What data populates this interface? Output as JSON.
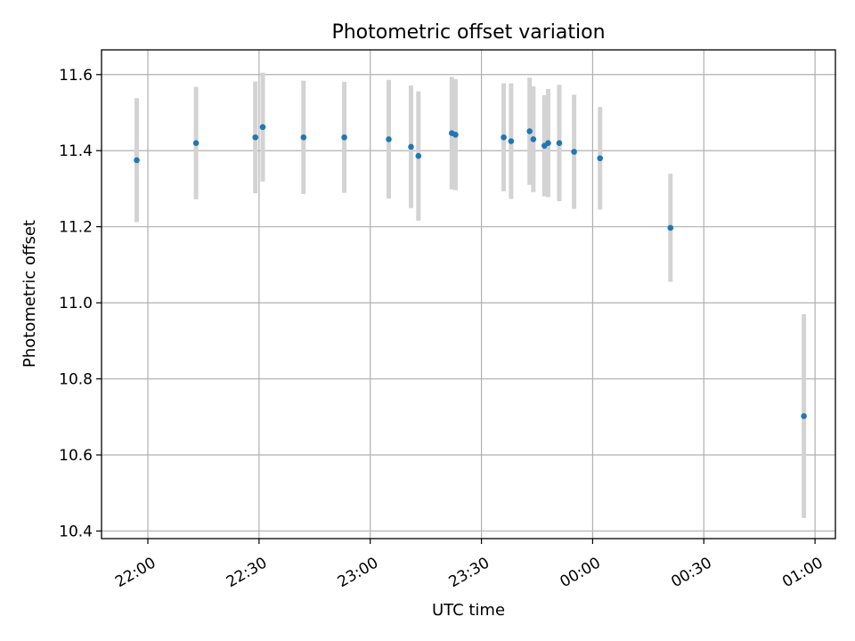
{
  "chart_data": {
    "type": "scatter",
    "title": "Photometric offset variation",
    "xlabel": "UTC time",
    "ylabel": "Photometric offset",
    "x_axis": {
      "kind": "time",
      "tick_labels": [
        "22:00",
        "22:30",
        "23:00",
        "23:30",
        "00:00",
        "00:30",
        "01:00"
      ],
      "tick_minutes": [
        0,
        30,
        60,
        90,
        120,
        150,
        180
      ],
      "range_minutes": [
        -12.5,
        185.5
      ]
    },
    "y_axis": {
      "tick_labels": [
        "10.4",
        "10.6",
        "10.8",
        "11.0",
        "11.2",
        "11.4",
        "11.6"
      ],
      "ticks": [
        10.4,
        10.6,
        10.8,
        11.0,
        11.2,
        11.4,
        11.6
      ],
      "ylim": [
        10.38,
        11.665
      ]
    },
    "grid": true,
    "colors": {
      "points": "#1f77b4",
      "errorbars": "#d3d3d3",
      "grid": "#b0b0b0"
    },
    "points": [
      {
        "time": "21:57",
        "y": 11.375,
        "err": 0.163
      },
      {
        "time": "22:13",
        "y": 11.42,
        "err": 0.148
      },
      {
        "time": "22:29",
        "y": 11.435,
        "err": 0.147
      },
      {
        "time": "22:31",
        "y": 11.462,
        "err": 0.143
      },
      {
        "time": "22:42",
        "y": 11.435,
        "err": 0.149
      },
      {
        "time": "22:53",
        "y": 11.435,
        "err": 0.146
      },
      {
        "time": "23:05",
        "y": 11.43,
        "err": 0.156
      },
      {
        "time": "23:11",
        "y": 11.41,
        "err": 0.161
      },
      {
        "time": "23:13",
        "y": 11.386,
        "err": 0.17
      },
      {
        "time": "23:22",
        "y": 11.446,
        "err": 0.148
      },
      {
        "time": "23:23",
        "y": 11.442,
        "err": 0.146
      },
      {
        "time": "23:36",
        "y": 11.435,
        "err": 0.142
      },
      {
        "time": "23:38",
        "y": 11.425,
        "err": 0.152
      },
      {
        "time": "23:43",
        "y": 11.451,
        "err": 0.141
      },
      {
        "time": "23:44",
        "y": 11.43,
        "err": 0.139
      },
      {
        "time": "23:47",
        "y": 11.413,
        "err": 0.133
      },
      {
        "time": "23:48",
        "y": 11.42,
        "err": 0.142
      },
      {
        "time": "23:51",
        "y": 11.42,
        "err": 0.153
      },
      {
        "time": "23:55",
        "y": 11.397,
        "err": 0.15
      },
      {
        "time": "00:02",
        "y": 11.38,
        "err": 0.135
      },
      {
        "time": "00:21",
        "y": 11.197,
        "err": 0.142
      },
      {
        "time": "00:57",
        "y": 10.702,
        "err": 0.268
      }
    ]
  }
}
